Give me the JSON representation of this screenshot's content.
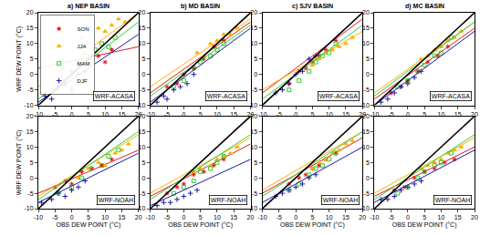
{
  "chart_data": [
    {
      "type": "scatter",
      "title": "a) NEP BASIN",
      "annotation": "WRF-ACASA",
      "y_label": "WRF DEW POINT (°C)",
      "legend": "top left",
      "xlim": [
        -10,
        20
      ],
      "ylim": [
        -10,
        20
      ],
      "xticks": [
        -10,
        -5,
        0,
        5,
        10,
        15,
        20
      ],
      "yticks": [
        -10,
        -5,
        0,
        5,
        10,
        15,
        20
      ],
      "series": [
        {
          "name": "SON",
          "color": "#e41a1c",
          "marker": "asterisk",
          "x": [
            -3,
            0,
            2,
            5,
            8,
            10,
            12
          ],
          "values": [
            2,
            1,
            4,
            5,
            6,
            4,
            8
          ],
          "fit": [
            2,
            9
          ]
        },
        {
          "name": "JJA",
          "color": "#ffb000",
          "marker": "triangle",
          "x": [
            3,
            5,
            8,
            10,
            12,
            14,
            16
          ],
          "values": [
            12,
            10,
            15,
            14,
            16,
            18,
            17
          ],
          "fit": [
            -4,
            20
          ]
        },
        {
          "name": "MAM",
          "color": "#33cc33",
          "marker": "square",
          "x": [
            -2,
            2,
            4,
            7,
            9,
            11,
            13
          ],
          "values": [
            -3,
            3,
            6,
            8,
            10,
            9,
            12
          ],
          "fit": [
            -8,
            17
          ]
        },
        {
          "name": "DJF",
          "color": "#1a1aa0",
          "marker": "cross",
          "x": [
            -8,
            -6,
            -4,
            -2,
            0,
            2,
            4
          ],
          "values": [
            -7,
            -8,
            -4,
            -3,
            -5,
            0,
            1
          ],
          "fit": [
            -9,
            13
          ]
        },
        {
          "type": "line",
          "color": "#000000",
          "x": [
            -10,
            20
          ],
          "values": [
            -10,
            20
          ]
        }
      ]
    },
    {
      "type": "scatter",
      "title": "b) MD BASIN",
      "annotation": "WRF-ACASA",
      "xlim": [
        -10,
        20
      ],
      "ylim": [
        -10,
        20
      ],
      "xticks": [
        -10,
        -5,
        0,
        5,
        10,
        15,
        20
      ],
      "yticks": [
        -10,
        -5,
        0,
        5,
        10,
        15,
        20
      ],
      "series": [
        {
          "name": "SON",
          "color": "#e41a1c",
          "marker": "asterisk",
          "x": [
            -5,
            -2,
            0,
            3,
            6,
            9,
            12
          ],
          "values": [
            -4,
            -3,
            0,
            2,
            5,
            9,
            11
          ],
          "fit": [
            -6,
            17
          ]
        },
        {
          "name": "JJA",
          "color": "#ffb000",
          "marker": "triangle",
          "x": [
            4,
            6,
            8,
            10,
            12,
            14,
            16
          ],
          "values": [
            7,
            6,
            10,
            11,
            13,
            13,
            15
          ],
          "fit": [
            -4,
            18
          ]
        },
        {
          "name": "MAM",
          "color": "#33cc33",
          "marker": "square",
          "x": [
            -3,
            0,
            3,
            5,
            8,
            10,
            12
          ],
          "values": [
            -4,
            -2,
            2,
            4,
            6,
            8,
            10
          ],
          "fit": [
            -7,
            16
          ]
        },
        {
          "name": "DJF",
          "color": "#1a1aa0",
          "marker": "cross",
          "x": [
            -8,
            -6,
            -5,
            -3,
            -1,
            1,
            3
          ],
          "values": [
            -9,
            -7,
            -8,
            -5,
            -4,
            -3,
            0
          ],
          "fit": [
            -9,
            15
          ]
        },
        {
          "type": "line",
          "color": "#000000",
          "x": [
            -10,
            20
          ],
          "values": [
            -10,
            20
          ]
        }
      ]
    },
    {
      "type": "scatter",
      "title": "c) SJV BASIN",
      "annotation": "WRF-ACASA",
      "xlim": [
        -10,
        20
      ],
      "ylim": [
        -10,
        20
      ],
      "xticks": [
        -10,
        -5,
        0,
        5,
        10,
        15,
        20
      ],
      "yticks": [
        -10,
        -5,
        0,
        5,
        10,
        15,
        20
      ],
      "series": [
        {
          "name": "SON",
          "color": "#e41a1c",
          "marker": "asterisk",
          "x": [
            -2,
            1,
            3,
            5,
            7,
            9,
            12
          ],
          "values": [
            -3,
            1,
            2,
            4,
            6,
            8,
            11
          ],
          "fit": [
            -6,
            18
          ]
        },
        {
          "name": "JJA",
          "color": "#ffb000",
          "marker": "triangle",
          "x": [
            5,
            7,
            9,
            11,
            13,
            15,
            17
          ],
          "values": [
            3,
            5,
            7,
            8,
            9,
            10,
            12
          ],
          "fit": [
            -5,
            14
          ]
        },
        {
          "name": "MAM",
          "color": "#33cc33",
          "marker": "square",
          "x": [
            -2,
            1,
            4,
            6,
            8,
            10,
            12
          ],
          "values": [
            -5,
            -2,
            1,
            4,
            6,
            7,
            10
          ],
          "fit": [
            -8,
            16
          ]
        },
        {
          "name": "DJF",
          "color": "#1a1aa0",
          "marker": "cross",
          "x": [
            -6,
            -4,
            -2,
            0,
            2,
            4,
            6
          ],
          "values": [
            -6,
            -5,
            -3,
            0,
            1,
            5,
            6
          ],
          "fit": [
            -10,
            20
          ]
        },
        {
          "type": "line",
          "color": "#000000",
          "x": [
            -10,
            20
          ],
          "values": [
            -10,
            20
          ]
        }
      ]
    },
    {
      "type": "scatter",
      "title": "d) MC BASIN",
      "annotation": "WRF-ACASA",
      "xlim": [
        -10,
        20
      ],
      "ylim": [
        -10,
        20
      ],
      "xticks": [
        -10,
        -5,
        0,
        5,
        10,
        15,
        20
      ],
      "yticks": [
        -10,
        -5,
        0,
        5,
        10,
        15,
        20
      ],
      "series": [
        {
          "name": "SON",
          "color": "#e41a1c",
          "marker": "asterisk",
          "x": [
            -5,
            -2,
            0,
            3,
            6,
            9,
            12
          ],
          "values": [
            -6,
            -4,
            -2,
            1,
            4,
            6,
            9
          ],
          "fit": [
            -8,
            15
          ]
        },
        {
          "name": "JJA",
          "color": "#ffb000",
          "marker": "triangle",
          "x": [
            4,
            6,
            8,
            10,
            12,
            14,
            16
          ],
          "values": [
            5,
            6,
            8,
            9,
            11,
            12,
            14
          ],
          "fit": [
            -6,
            17
          ]
        },
        {
          "name": "MAM",
          "color": "#33cc33",
          "marker": "square",
          "x": [
            -3,
            0,
            3,
            5,
            8,
            10,
            13
          ],
          "values": [
            -4,
            -2,
            1,
            3,
            6,
            7,
            12
          ],
          "fit": [
            -7,
            17
          ]
        },
        {
          "name": "DJF",
          "color": "#1a1aa0",
          "marker": "cross",
          "x": [
            -8,
            -6,
            -4,
            -2,
            0,
            2,
            4
          ],
          "values": [
            -9,
            -8,
            -6,
            -4,
            -3,
            -1,
            1
          ],
          "fit": [
            -10,
            14
          ]
        },
        {
          "type": "line",
          "color": "#000000",
          "x": [
            -10,
            20
          ],
          "values": [
            -10,
            20
          ]
        }
      ]
    },
    {
      "type": "scatter",
      "annotation": "WRF-NOAH",
      "x_label": "OBS DEW POINT (°C)",
      "y_label": "WRF DEW POINT (°C)",
      "xlim": [
        -10,
        20
      ],
      "ylim": [
        -10,
        20
      ],
      "xticks": [
        -10,
        -5,
        0,
        5,
        10,
        15,
        20
      ],
      "yticks": [
        -10,
        -5,
        0,
        5,
        10,
        15,
        20
      ],
      "series": [
        {
          "name": "SON",
          "color": "#e41a1c",
          "marker": "asterisk",
          "x": [
            -5,
            -2,
            0,
            3,
            6,
            9,
            12
          ],
          "values": [
            -3,
            -1,
            -2,
            2,
            3,
            4,
            6
          ],
          "fit": [
            -5,
            9
          ]
        },
        {
          "name": "JJA",
          "color": "#ffb000",
          "marker": "triangle",
          "x": [
            2,
            5,
            8,
            10,
            13,
            15,
            17
          ],
          "values": [
            0,
            3,
            5,
            4,
            8,
            9,
            11
          ],
          "fit": [
            -6,
            14
          ]
        },
        {
          "name": "MAM",
          "color": "#33cc33",
          "marker": "square",
          "x": [
            -4,
            0,
            3,
            6,
            9,
            11,
            14
          ],
          "values": [
            -5,
            -3,
            0,
            3,
            4,
            7,
            9
          ],
          "fit": [
            -7,
            15
          ]
        },
        {
          "name": "DJF",
          "color": "#1a1aa0",
          "marker": "cross",
          "x": [
            -9,
            -6,
            -4,
            -2,
            0,
            2,
            4
          ],
          "values": [
            -8,
            -7,
            -5,
            -6,
            -4,
            -3,
            -1
          ],
          "fit": [
            -8,
            8
          ]
        },
        {
          "type": "line",
          "color": "#000000",
          "x": [
            -10,
            20
          ],
          "values": [
            -10,
            20
          ]
        }
      ]
    },
    {
      "type": "scatter",
      "annotation": "WRF-NOAH",
      "x_label": "OBS DEW POINT (°C)",
      "xlim": [
        -10,
        20
      ],
      "ylim": [
        -10,
        20
      ],
      "xticks": [
        -10,
        -5,
        0,
        5,
        10,
        15,
        20
      ],
      "yticks": [
        -10,
        -5,
        0,
        5,
        10,
        15,
        20
      ],
      "series": [
        {
          "name": "SON",
          "color": "#e41a1c",
          "marker": "asterisk",
          "x": [
            -5,
            -2,
            0,
            3,
            6,
            9,
            12
          ],
          "values": [
            -5,
            -3,
            -2,
            1,
            2,
            4,
            6
          ],
          "fit": [
            -6,
            11
          ]
        },
        {
          "name": "JJA",
          "color": "#ffb000",
          "marker": "triangle",
          "x": [
            3,
            5,
            8,
            10,
            12,
            14,
            16
          ],
          "values": [
            2,
            3,
            4,
            6,
            7,
            8,
            10
          ],
          "fit": [
            -5,
            13
          ]
        },
        {
          "name": "MAM",
          "color": "#33cc33",
          "marker": "square",
          "x": [
            -3,
            0,
            3,
            5,
            8,
            10,
            12
          ],
          "values": [
            -5,
            -3,
            -1,
            2,
            3,
            5,
            7
          ],
          "fit": [
            -7,
            14
          ]
        },
        {
          "name": "DJF",
          "color": "#1a1aa0",
          "marker": "cross",
          "x": [
            -8,
            -6,
            -4,
            -2,
            0,
            2,
            4
          ],
          "values": [
            -9,
            -8,
            -8,
            -7,
            -6,
            -5,
            -4
          ],
          "fit": [
            -9,
            6
          ]
        },
        {
          "type": "line",
          "color": "#000000",
          "x": [
            -10,
            20
          ],
          "values": [
            -10,
            20
          ]
        }
      ]
    },
    {
      "type": "scatter",
      "annotation": "WRF-NOAH",
      "x_label": "OBS DEW POINT (°C)",
      "xlim": [
        -10,
        20
      ],
      "ylim": [
        -10,
        20
      ],
      "xticks": [
        -10,
        -5,
        0,
        5,
        10,
        15,
        20
      ],
      "yticks": [
        -10,
        -5,
        0,
        5,
        10,
        15,
        20
      ],
      "series": [
        {
          "name": "SON",
          "color": "#e41a1c",
          "marker": "asterisk",
          "x": [
            -2,
            1,
            3,
            5,
            7,
            9,
            12
          ],
          "values": [
            -2,
            0,
            1,
            3,
            4,
            6,
            8
          ],
          "fit": [
            -5,
            13
          ]
        },
        {
          "name": "JJA",
          "color": "#ffb000",
          "marker": "triangle",
          "x": [
            5,
            7,
            9,
            11,
            13,
            15,
            17
          ],
          "values": [
            3,
            5,
            6,
            8,
            9,
            11,
            12
          ],
          "fit": [
            -4,
            15
          ]
        },
        {
          "name": "MAM",
          "color": "#33cc33",
          "marker": "square",
          "x": [
            -2,
            1,
            4,
            6,
            8,
            10,
            12
          ],
          "values": [
            -4,
            -2,
            1,
            3,
            4,
            6,
            8
          ],
          "fit": [
            -6,
            15
          ]
        },
        {
          "name": "DJF",
          "color": "#1a1aa0",
          "marker": "cross",
          "x": [
            -6,
            -4,
            -2,
            0,
            2,
            4,
            6
          ],
          "values": [
            -6,
            -5,
            -4,
            -3,
            -2,
            0,
            1
          ],
          "fit": [
            -8,
            10
          ]
        },
        {
          "type": "line",
          "color": "#000000",
          "x": [
            -10,
            20
          ],
          "values": [
            -10,
            20
          ]
        }
      ]
    },
    {
      "type": "scatter",
      "annotation": "WRF-NOAH",
      "x_label": "OBS DEW POINT (°C)",
      "xlim": [
        -10,
        20
      ],
      "ylim": [
        -10,
        20
      ],
      "xticks": [
        -10,
        -5,
        0,
        5,
        10,
        15,
        20
      ],
      "yticks": [
        -10,
        -5,
        0,
        5,
        10,
        15,
        20
      ],
      "series": [
        {
          "name": "SON",
          "color": "#e41a1c",
          "marker": "asterisk",
          "x": [
            -4,
            -1,
            2,
            5,
            8,
            11,
            14
          ],
          "values": [
            -4,
            -3,
            0,
            2,
            3,
            5,
            6
          ],
          "fit": [
            -6,
            10
          ]
        },
        {
          "name": "JJA",
          "color": "#ffb000",
          "marker": "triangle",
          "x": [
            4,
            6,
            8,
            10,
            12,
            14,
            16
          ],
          "values": [
            3,
            4,
            5,
            6,
            8,
            9,
            10
          ],
          "fit": [
            -5,
            13
          ]
        },
        {
          "name": "MAM",
          "color": "#33cc33",
          "marker": "square",
          "x": [
            -3,
            0,
            3,
            5,
            8,
            10,
            13
          ],
          "values": [
            -5,
            -3,
            0,
            2,
            4,
            5,
            8
          ],
          "fit": [
            -7,
            14
          ]
        },
        {
          "name": "DJF",
          "color": "#1a1aa0",
          "marker": "cross",
          "x": [
            -8,
            -6,
            -4,
            -2,
            0,
            2,
            4
          ],
          "values": [
            -7,
            -7,
            -6,
            -4,
            -3,
            -2,
            -1
          ],
          "fit": [
            -8,
            9
          ]
        },
        {
          "type": "line",
          "color": "#000000",
          "x": [
            -10,
            20
          ],
          "values": [
            -10,
            20
          ]
        }
      ]
    }
  ]
}
